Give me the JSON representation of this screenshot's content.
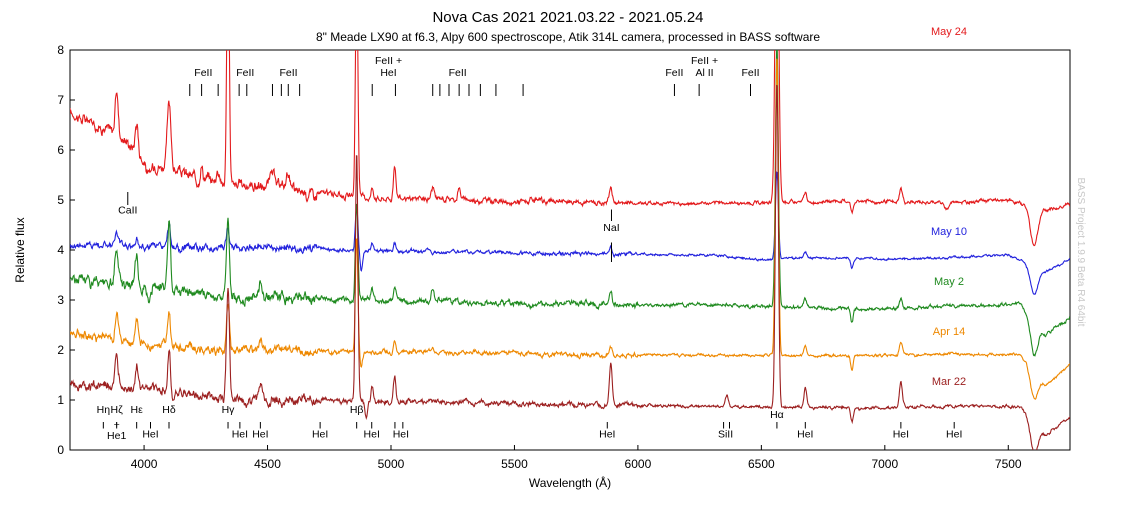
{
  "chart_data": {
    "type": "line",
    "title": "Nova Cas 2021 2021.03.22 - 2021.05.24",
    "subtitle": "8\" Meade LX90 at f6.3, Alpy 600 spectroscope, Atik 314L camera, processed in BASS software",
    "xlabel": "Wavelength (Å)",
    "ylabel": "Relative flux",
    "xlim": [
      3700,
      7750
    ],
    "ylim": [
      0,
      8
    ],
    "x_ticks": [
      4000,
      4500,
      5000,
      5500,
      6000,
      6500,
      7000,
      7500
    ],
    "y_ticks": [
      0,
      1,
      2,
      3,
      4,
      5,
      6,
      7,
      8
    ],
    "watermark": "BASS Project 1.9.9 Beta R4 64bit",
    "series": [
      {
        "name": "May 24",
        "color": "#e31a1c",
        "offset": 4.0,
        "noise": 0.09,
        "continuum": [
          [
            3700,
            2.75
          ],
          [
            3800,
            2.5
          ],
          [
            3900,
            2.3
          ],
          [
            4000,
            1.8
          ],
          [
            4200,
            1.45
          ],
          [
            4400,
            1.3
          ],
          [
            4600,
            1.2
          ],
          [
            4900,
            1.05
          ],
          [
            5300,
            1.0
          ],
          [
            5800,
            0.95
          ],
          [
            6200,
            0.93
          ],
          [
            6500,
            0.95
          ],
          [
            6900,
            0.97
          ],
          [
            7200,
            0.95
          ],
          [
            7500,
            1.0
          ],
          [
            7650,
            0.8
          ],
          [
            7750,
            0.9
          ]
        ],
        "lines": [
          [
            4101,
            1.3,
            8
          ],
          [
            4340,
            5.0,
            5
          ],
          [
            4861,
            4.5,
            5
          ],
          [
            5015,
            0.65,
            5
          ],
          [
            5890,
            0.3,
            7
          ],
          [
            6563,
            7.0,
            7
          ],
          [
            7065,
            0.25,
            6
          ],
          [
            3889,
            0.85,
            6
          ],
          [
            3970,
            0.6,
            6
          ],
          [
            4233,
            0.3,
            6
          ],
          [
            4300,
            0.25,
            6
          ],
          [
            4520,
            0.35,
            7
          ],
          [
            4584,
            0.35,
            7
          ],
          [
            4924,
            0.2,
            5
          ],
          [
            5169,
            0.25,
            6
          ],
          [
            5276,
            0.25,
            6
          ],
          [
            6678,
            0.2,
            6
          ]
        ],
        "absorptions": [
          [
            6867,
            0.25,
            5
          ],
          [
            7605,
            0.75,
            15
          ],
          [
            4020,
            0.3,
            8
          ],
          [
            5480,
            0.1,
            10
          ],
          [
            7250,
            0.15,
            10
          ]
        ]
      },
      {
        "name": "May 10",
        "color": "#2222dd",
        "offset": 3.0,
        "noise": 0.06,
        "continuum": [
          [
            3700,
            1.1
          ],
          [
            3900,
            1.1
          ],
          [
            4100,
            1.05
          ],
          [
            4400,
            1.05
          ],
          [
            4800,
            1.0
          ],
          [
            5200,
            0.97
          ],
          [
            5800,
            0.92
          ],
          [
            6300,
            0.9
          ],
          [
            6500,
            0.8
          ],
          [
            6700,
            0.85
          ],
          [
            7000,
            0.82
          ],
          [
            7300,
            0.85
          ],
          [
            7500,
            0.9
          ],
          [
            7650,
            0.55
          ],
          [
            7750,
            0.8
          ]
        ],
        "lines": [
          [
            4101,
            0.45,
            6
          ],
          [
            4340,
            0.4,
            6
          ],
          [
            4861,
            0.9,
            5
          ],
          [
            5890,
            0.15,
            6
          ],
          [
            6563,
            1.75,
            6
          ],
          [
            6678,
            0.12,
            6
          ],
          [
            3889,
            0.25,
            6
          ],
          [
            3970,
            0.2,
            6
          ],
          [
            4924,
            0.15,
            5
          ],
          [
            5015,
            0.15,
            5
          ]
        ],
        "absorptions": [
          [
            6867,
            0.2,
            5
          ],
          [
            7605,
            0.55,
            15
          ],
          [
            4150,
            0.15,
            6
          ],
          [
            4880,
            0.4,
            5
          ]
        ]
      },
      {
        "name": "May 2",
        "color": "#1f8a1f",
        "offset": 2.0,
        "noise": 0.09,
        "continuum": [
          [
            3700,
            1.45
          ],
          [
            3900,
            1.35
          ],
          [
            4100,
            1.2
          ],
          [
            4400,
            1.05
          ],
          [
            4800,
            1.0
          ],
          [
            5200,
            0.97
          ],
          [
            5800,
            0.9
          ],
          [
            6300,
            0.9
          ],
          [
            6600,
            0.85
          ],
          [
            7000,
            0.82
          ],
          [
            7300,
            0.88
          ],
          [
            7550,
            0.92
          ],
          [
            7650,
            0.3
          ],
          [
            7750,
            0.65
          ]
        ],
        "lines": [
          [
            4101,
            1.3,
            6
          ],
          [
            4340,
            1.5,
            6
          ],
          [
            4861,
            1.9,
            5
          ],
          [
            5015,
            0.35,
            5
          ],
          [
            5890,
            0.25,
            6
          ],
          [
            6563,
            5.3,
            6
          ],
          [
            7065,
            0.2,
            6
          ],
          [
            3889,
            0.6,
            6
          ],
          [
            3970,
            0.6,
            6
          ],
          [
            4924,
            0.25,
            5
          ],
          [
            4471,
            0.3,
            6
          ],
          [
            5169,
            0.3,
            6
          ],
          [
            6678,
            0.2,
            6
          ]
        ],
        "absorptions": [
          [
            6867,
            0.3,
            5
          ],
          [
            7605,
            0.65,
            15
          ],
          [
            4020,
            0.35,
            8
          ]
        ]
      },
      {
        "name": "Apr 14",
        "color": "#ee8800",
        "offset": 1.0,
        "noise": 0.07,
        "continuum": [
          [
            3700,
            1.35
          ],
          [
            3900,
            1.2
          ],
          [
            4100,
            1.05
          ],
          [
            4400,
            1.0
          ],
          [
            4800,
            0.97
          ],
          [
            5300,
            0.95
          ],
          [
            5800,
            0.9
          ],
          [
            6300,
            0.9
          ],
          [
            6600,
            0.88
          ],
          [
            7000,
            0.9
          ],
          [
            7300,
            0.92
          ],
          [
            7550,
            0.9
          ],
          [
            7650,
            0.3
          ],
          [
            7750,
            0.7
          ]
        ],
        "lines": [
          [
            4101,
            0.7,
            6
          ],
          [
            4340,
            0.9,
            6
          ],
          [
            4861,
            2.3,
            5
          ],
          [
            5015,
            0.25,
            5
          ],
          [
            5890,
            0.2,
            6
          ],
          [
            6563,
            6.0,
            6
          ],
          [
            7065,
            0.25,
            6
          ],
          [
            3889,
            0.5,
            6
          ],
          [
            3970,
            0.45,
            6
          ],
          [
            4471,
            0.25,
            6
          ],
          [
            5169,
            0.15,
            6
          ],
          [
            6678,
            0.2,
            6
          ]
        ],
        "absorptions": [
          [
            6867,
            0.3,
            5
          ],
          [
            7605,
            0.55,
            15
          ],
          [
            4880,
            0.3,
            5
          ]
        ]
      },
      {
        "name": "Mar 22",
        "color": "#9c2020",
        "offset": 0.0,
        "noise": 0.08,
        "continuum": [
          [
            3700,
            1.3
          ],
          [
            3900,
            1.3
          ],
          [
            4100,
            1.15
          ],
          [
            4400,
            1.0
          ],
          [
            4800,
            0.97
          ],
          [
            5300,
            0.95
          ],
          [
            5800,
            0.9
          ],
          [
            6300,
            0.87
          ],
          [
            6600,
            0.85
          ],
          [
            7000,
            0.85
          ],
          [
            7300,
            0.88
          ],
          [
            7550,
            0.87
          ],
          [
            7650,
            0.3
          ],
          [
            7750,
            0.65
          ]
        ],
        "lines": [
          [
            4101,
            0.9,
            6
          ],
          [
            4340,
            2.3,
            6
          ],
          [
            4861,
            5.0,
            5
          ],
          [
            5015,
            0.5,
            5
          ],
          [
            5890,
            0.85,
            6
          ],
          [
            6563,
            6.5,
            6
          ],
          [
            7065,
            0.5,
            6
          ],
          [
            6678,
            0.4,
            6
          ],
          [
            3889,
            0.45,
            6
          ],
          [
            3970,
            0.45,
            6
          ],
          [
            4471,
            0.35,
            6
          ],
          [
            4924,
            0.3,
            5
          ],
          [
            6360,
            0.2,
            6
          ]
        ],
        "absorptions": [
          [
            6867,
            0.3,
            5
          ],
          [
            7605,
            0.6,
            15
          ],
          [
            4900,
            0.3,
            5
          ]
        ]
      }
    ],
    "annotations_top": [
      {
        "label": "FeII",
        "label_x": 4240,
        "ticks": [
          4185,
          4233,
          4300
        ]
      },
      {
        "label": "FeII",
        "label_x": 4410,
        "ticks": [
          4385,
          4416
        ]
      },
      {
        "label": "FeII",
        "label_x": 4585,
        "ticks": [
          4520,
          4556,
          4584,
          4630
        ]
      },
      {
        "label": "FeII +",
        "label2": "HeI",
        "label_x": 4990,
        "ticks": [
          4924,
          5018
        ]
      },
      {
        "label": "FeII",
        "label_x": 5270,
        "ticks": [
          5169,
          5198,
          5235,
          5276,
          5316,
          5362,
          5425,
          5535
        ]
      },
      {
        "label": "FeII",
        "label_x": 6148,
        "ticks": [
          6148
        ]
      },
      {
        "label": "FeII +",
        "label2": "Al II",
        "label_x": 6270,
        "ticks": [
          6248
        ]
      },
      {
        "label": "FeII",
        "label_x": 6456,
        "ticks": [
          6456
        ]
      }
    ],
    "annotations_mid": [
      {
        "label": "CaII",
        "x": 3934,
        "y": 4.73
      },
      {
        "label": "NaI",
        "x": 5893,
        "y": 4.38
      }
    ],
    "annotations_bottom": [
      {
        "label": "Hη",
        "x": 3835,
        "y": 0.74
      },
      {
        "label": "Hζ",
        "x": 3889,
        "y": 0.74
      },
      {
        "label": "Hε",
        "x": 3970,
        "y": 0.74
      },
      {
        "label": "Hδ",
        "x": 4101,
        "y": 0.74
      },
      {
        "label": "Hγ",
        "x": 4340,
        "y": 0.74
      },
      {
        "label": "Hβ",
        "x": 4861,
        "y": 0.74
      },
      {
        "label": "Hα",
        "x": 6563,
        "y": 0.64
      },
      {
        "label": "+",
        "x": 3889,
        "y": 0.44
      },
      {
        "label": "He1",
        "x": 3889,
        "y": 0.22
      },
      {
        "label": "HeI",
        "x": 4026,
        "y": 0.25
      },
      {
        "label": "HeI",
        "x": 4388,
        "y": 0.25
      },
      {
        "label": "HeI",
        "x": 4471,
        "y": 0.25
      },
      {
        "label": "HeI",
        "x": 4713,
        "y": 0.25
      },
      {
        "label": "HeI",
        "x": 4922,
        "y": 0.25
      },
      {
        "label": "HeI",
        "x": 5040,
        "y": 0.25
      },
      {
        "label": "HeI",
        "x": 5876,
        "y": 0.25
      },
      {
        "label": "SiII",
        "x": 6355,
        "y": 0.25
      },
      {
        "label": "HeI",
        "x": 6678,
        "y": 0.25
      },
      {
        "label": "HeI",
        "x": 7065,
        "y": 0.25
      },
      {
        "label": "HeI",
        "x": 7281,
        "y": 0.25
      }
    ],
    "bottom_ticks": [
      3835,
      3889,
      3970,
      4026,
      4101,
      4340,
      4388,
      4471,
      4713,
      4861,
      4922,
      5016,
      5048,
      5876,
      6347,
      6371,
      6563,
      6678,
      7065,
      7281
    ],
    "legend_placement": "series labels at right end of each trace"
  }
}
